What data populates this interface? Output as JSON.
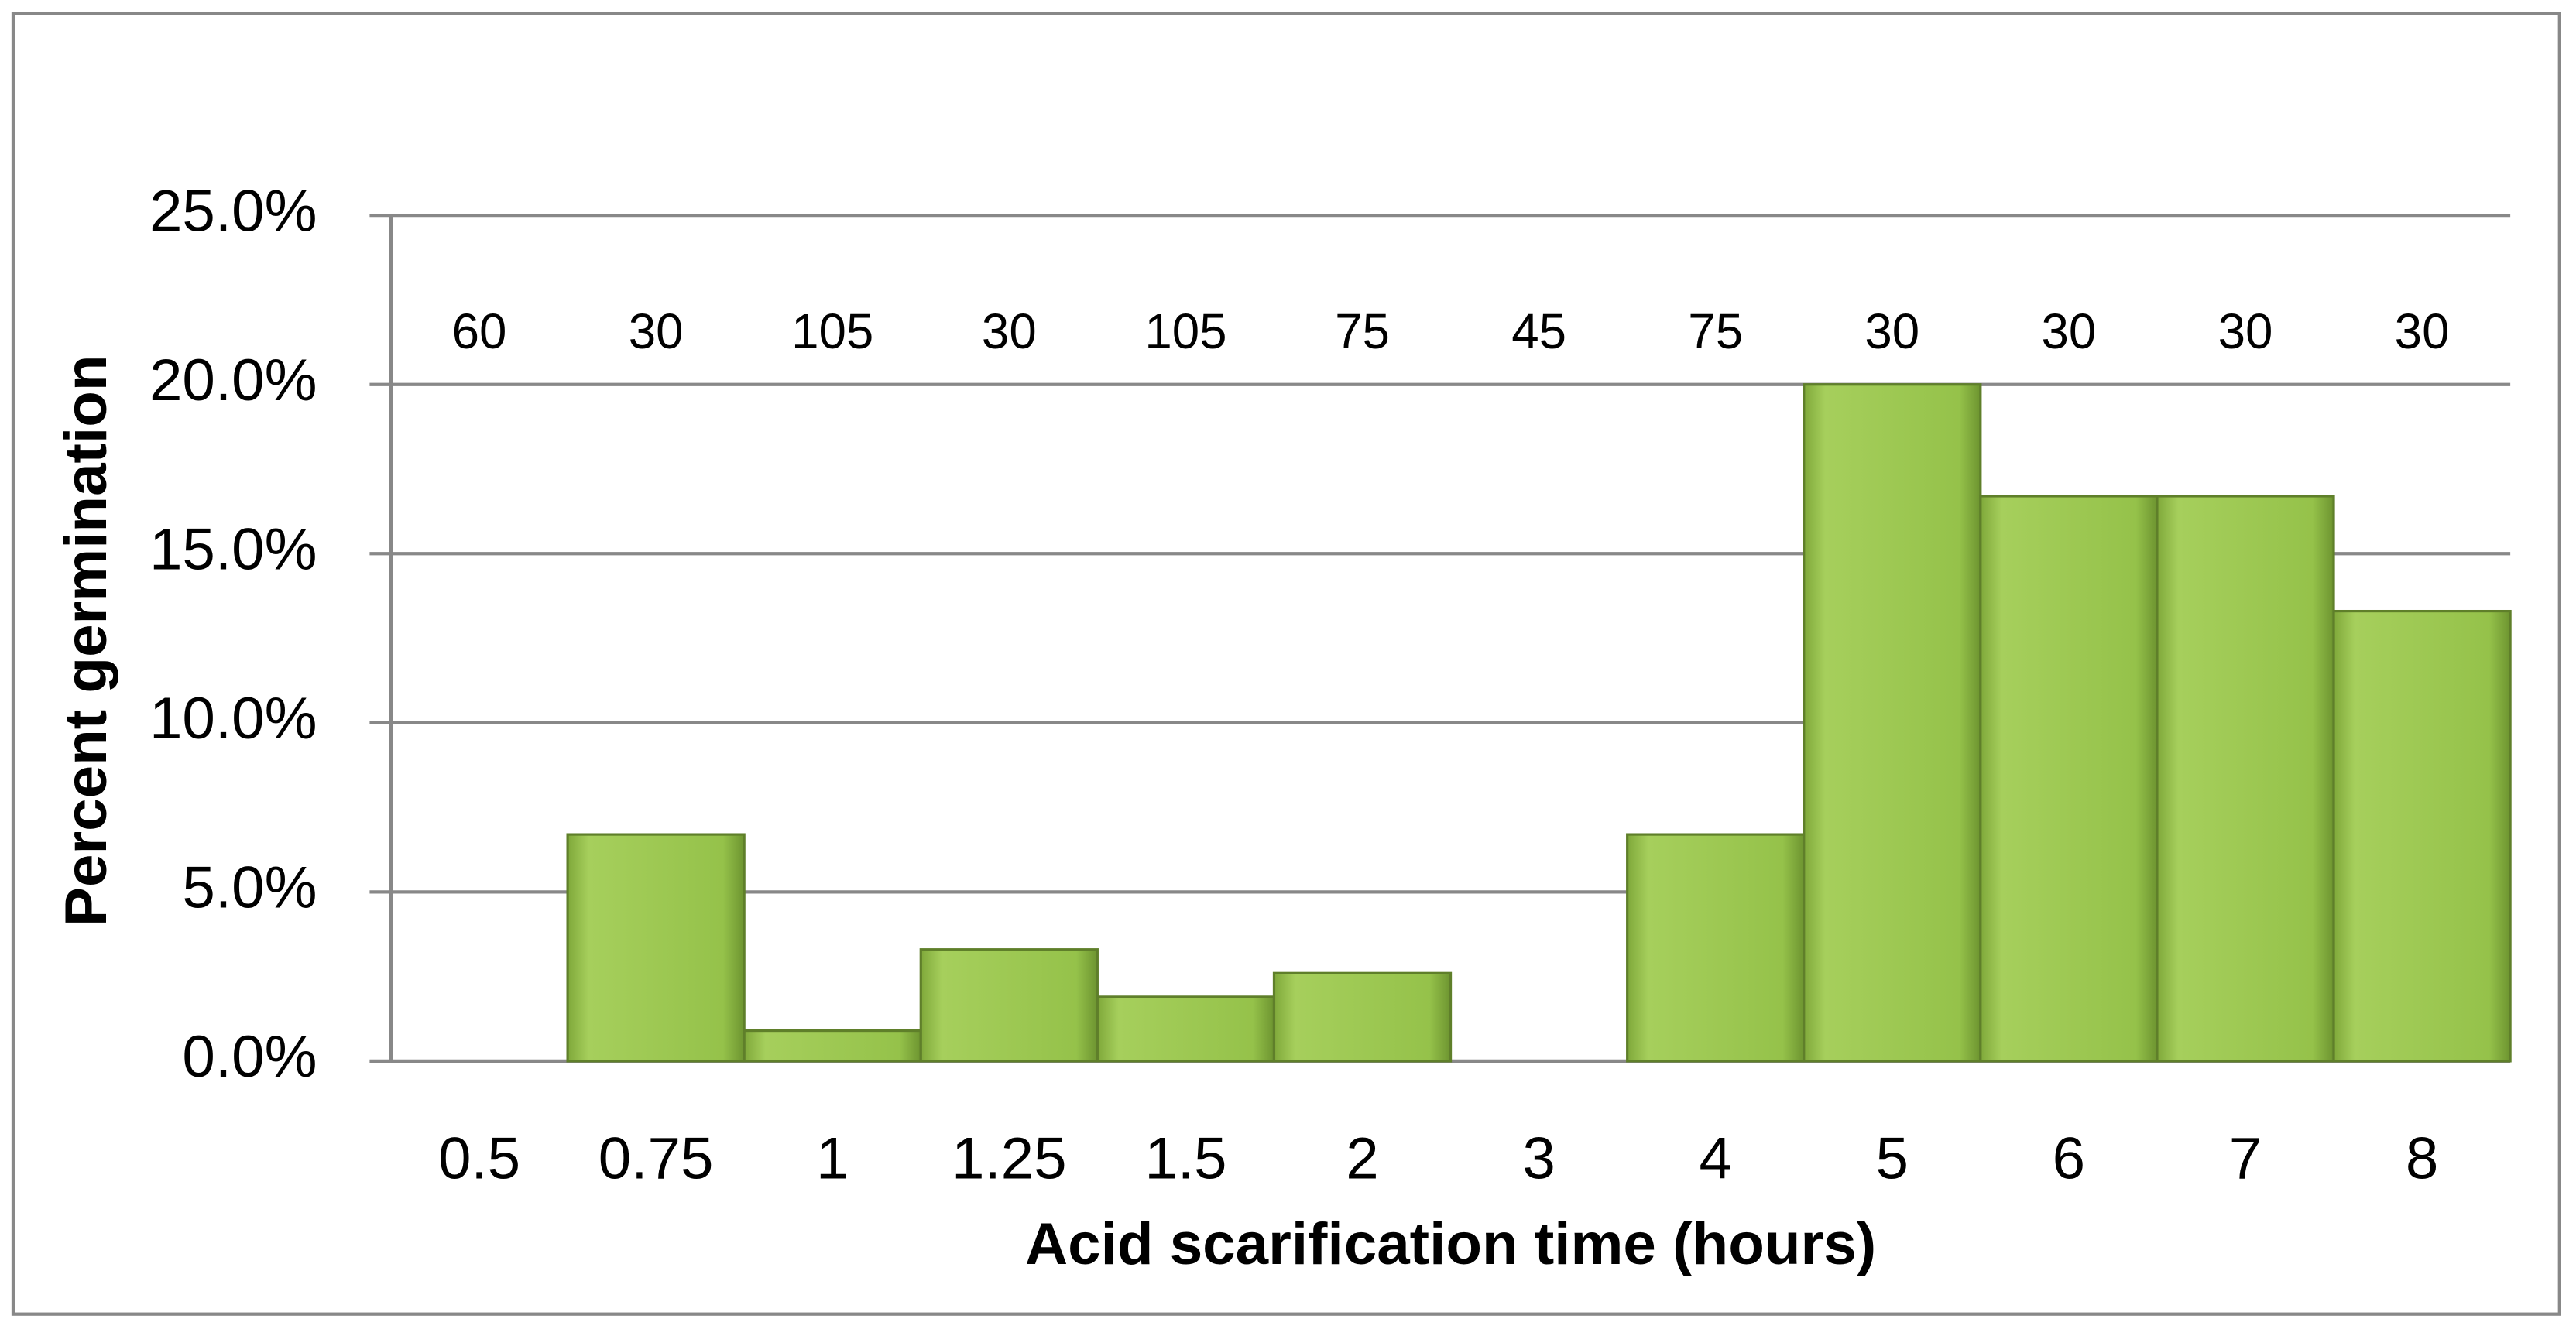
{
  "chart_data": {
    "type": "bar",
    "x_label": "Acid scarification time (hours)",
    "y_label": "Percent germination",
    "categories": [
      "0.5",
      "0.75",
      "1",
      "1.25",
      "1.5",
      "2",
      "3",
      "4",
      "5",
      "6",
      "7",
      "8"
    ],
    "values": [
      0,
      6.7,
      0.9,
      3.3,
      1.9,
      2.6,
      0,
      6.7,
      20,
      16.7,
      16.7,
      13.3
    ],
    "sample_sizes": [
      60,
      30,
      105,
      30,
      105,
      75,
      45,
      75,
      30,
      30,
      30,
      30
    ],
    "color": "#92c045",
    "ylim": [
      0,
      25
    ],
    "yticks": [
      {
        "value": 0,
        "label": "0.0%"
      },
      {
        "value": 5,
        "label": "5.0%"
      },
      {
        "value": 10,
        "label": "10.0%"
      },
      {
        "value": 15,
        "label": "15.0%"
      },
      {
        "value": 20,
        "label": "20.0%"
      },
      {
        "value": 25,
        "label": "25.0%"
      }
    ],
    "grid": true
  }
}
